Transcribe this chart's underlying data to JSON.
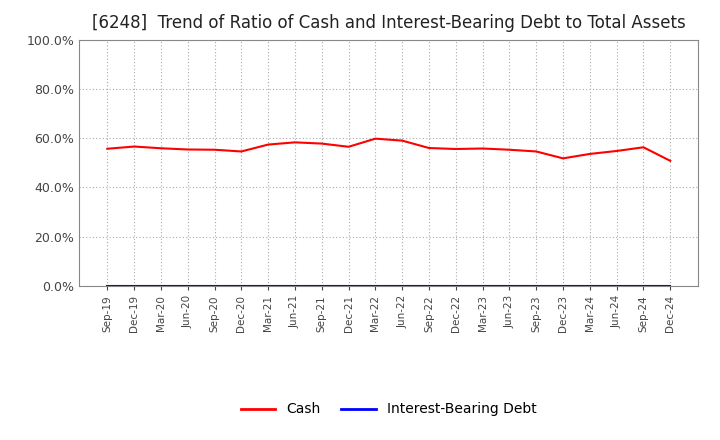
{
  "title": "[6248]  Trend of Ratio of Cash and Interest-Bearing Debt to Total Assets",
  "x_labels": [
    "Sep-19",
    "Dec-19",
    "Mar-20",
    "Jun-20",
    "Sep-20",
    "Dec-20",
    "Mar-21",
    "Jun-21",
    "Sep-21",
    "Dec-21",
    "Mar-22",
    "Jun-22",
    "Sep-22",
    "Dec-22",
    "Mar-23",
    "Jun-23",
    "Sep-23",
    "Dec-23",
    "Mar-24",
    "Jun-24",
    "Sep-24",
    "Dec-24"
  ],
  "cash": [
    0.557,
    0.566,
    0.559,
    0.554,
    0.553,
    0.546,
    0.574,
    0.583,
    0.578,
    0.565,
    0.598,
    0.59,
    0.56,
    0.556,
    0.558,
    0.553,
    0.546,
    0.518,
    0.536,
    0.548,
    0.563,
    0.508
  ],
  "interest_bearing_debt": [
    0.0,
    0.0,
    0.0,
    0.0,
    0.0,
    0.0,
    0.0,
    0.0,
    0.0,
    0.0,
    0.0,
    0.0,
    0.0,
    0.0,
    0.0,
    0.0,
    0.0,
    0.0,
    0.0,
    0.0,
    0.0,
    0.0
  ],
  "cash_color": "#ff0000",
  "debt_color": "#0000ff",
  "ylim": [
    0.0,
    1.0
  ],
  "yticks": [
    0.0,
    0.2,
    0.4,
    0.6,
    0.8,
    1.0
  ],
  "background_color": "#ffffff",
  "grid_color": "#aaaaaa",
  "title_fontsize": 12,
  "legend_cash": "Cash",
  "legend_debt": "Interest-Bearing Debt"
}
